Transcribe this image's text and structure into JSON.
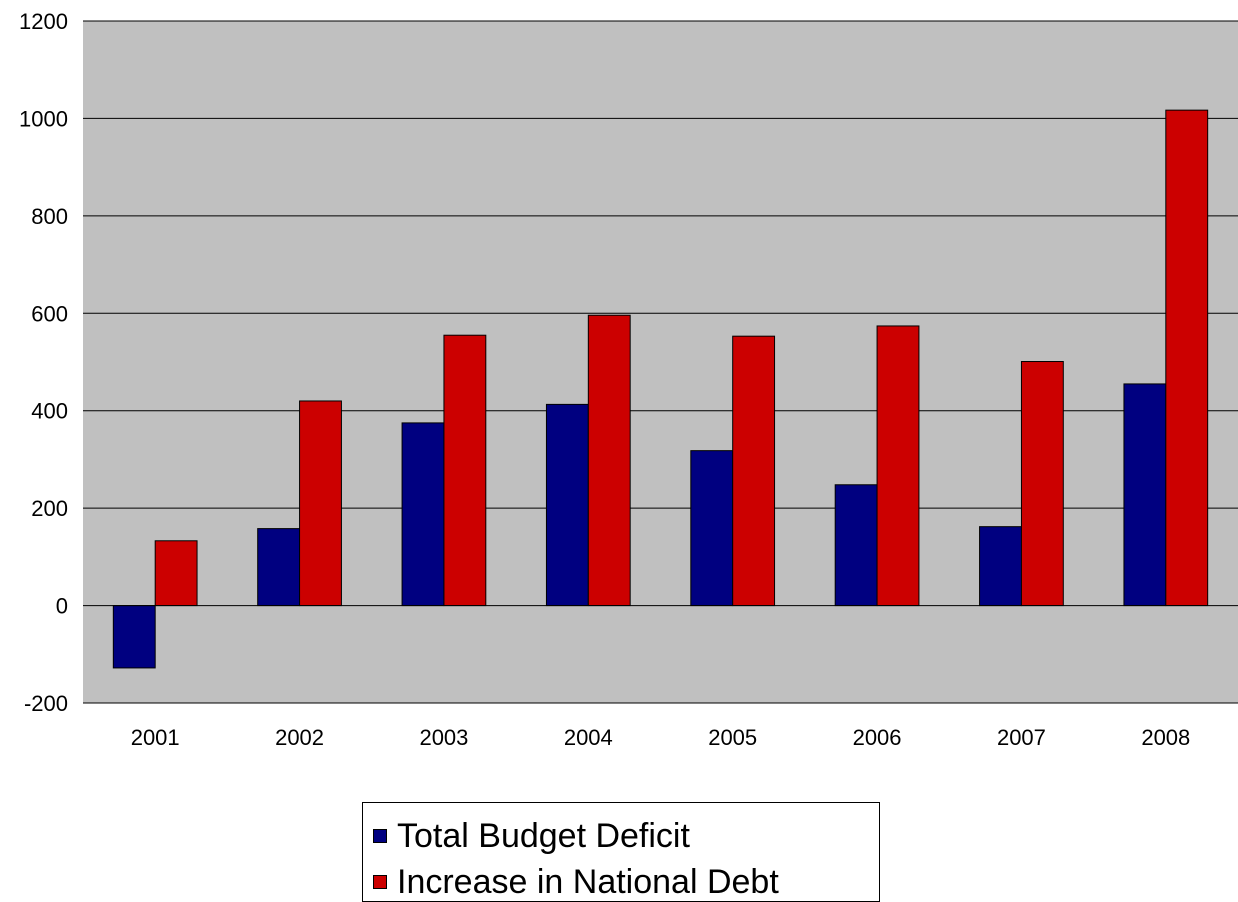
{
  "colors": {
    "plot_background": "#c0c0c0",
    "gridline": "#000000",
    "series_deficit": "#000080",
    "series_debt": "#cc0000"
  },
  "chart_data": {
    "type": "bar",
    "title": "",
    "xlabel": "",
    "ylabel": "",
    "categories": [
      "2001",
      "2002",
      "2003",
      "2004",
      "2005",
      "2006",
      "2007",
      "2008"
    ],
    "series": [
      {
        "name": "Total Budget Deficit",
        "color": "#000080",
        "values": [
          -128,
          158,
          375,
          413,
          318,
          248,
          162,
          455
        ]
      },
      {
        "name": "Increase in National Debt",
        "color": "#cc0000",
        "values": [
          133,
          420,
          555,
          596,
          553,
          574,
          501,
          1017
        ]
      }
    ],
    "ylim": [
      -200,
      1200
    ],
    "yticks": [
      "-200",
      "0",
      "200",
      "400",
      "600",
      "800",
      "1000",
      "1200"
    ],
    "grid": true,
    "legend": "bottom"
  }
}
